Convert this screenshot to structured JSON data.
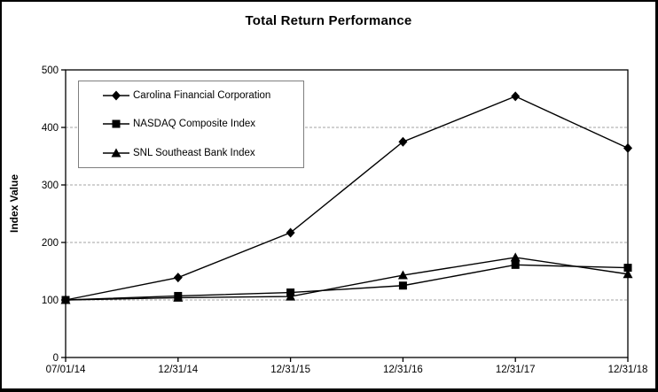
{
  "chart_data": {
    "type": "line",
    "title": "Total Return Performance",
    "xlabel": "",
    "ylabel": "Index Value",
    "categories": [
      "07/01/14",
      "12/31/14",
      "12/31/15",
      "12/31/16",
      "12/31/17",
      "12/31/18"
    ],
    "series": [
      {
        "name": "Carolina Financial Corporation",
        "marker": "diamond",
        "values": [
          100,
          139,
          217,
          375,
          454,
          364
        ]
      },
      {
        "name": "NASDAQ Composite Index",
        "marker": "square",
        "values": [
          100,
          107,
          113,
          125,
          161,
          156
        ]
      },
      {
        "name": "SNL Southeast Bank Index",
        "marker": "triangle",
        "values": [
          100,
          104,
          106,
          143,
          174,
          145
        ]
      }
    ],
    "ylim": [
      0,
      500
    ],
    "yticks": [
      0,
      100,
      200,
      300,
      400,
      500
    ],
    "grid": "horizontal-dashed",
    "legend_position": "top-left-inside",
    "line_color": "#000000",
    "marker_color": "#000000",
    "grid_color": "#a3a3a3",
    "axis_color": "#000000",
    "legend_border_color": "#7f7f7f"
  }
}
